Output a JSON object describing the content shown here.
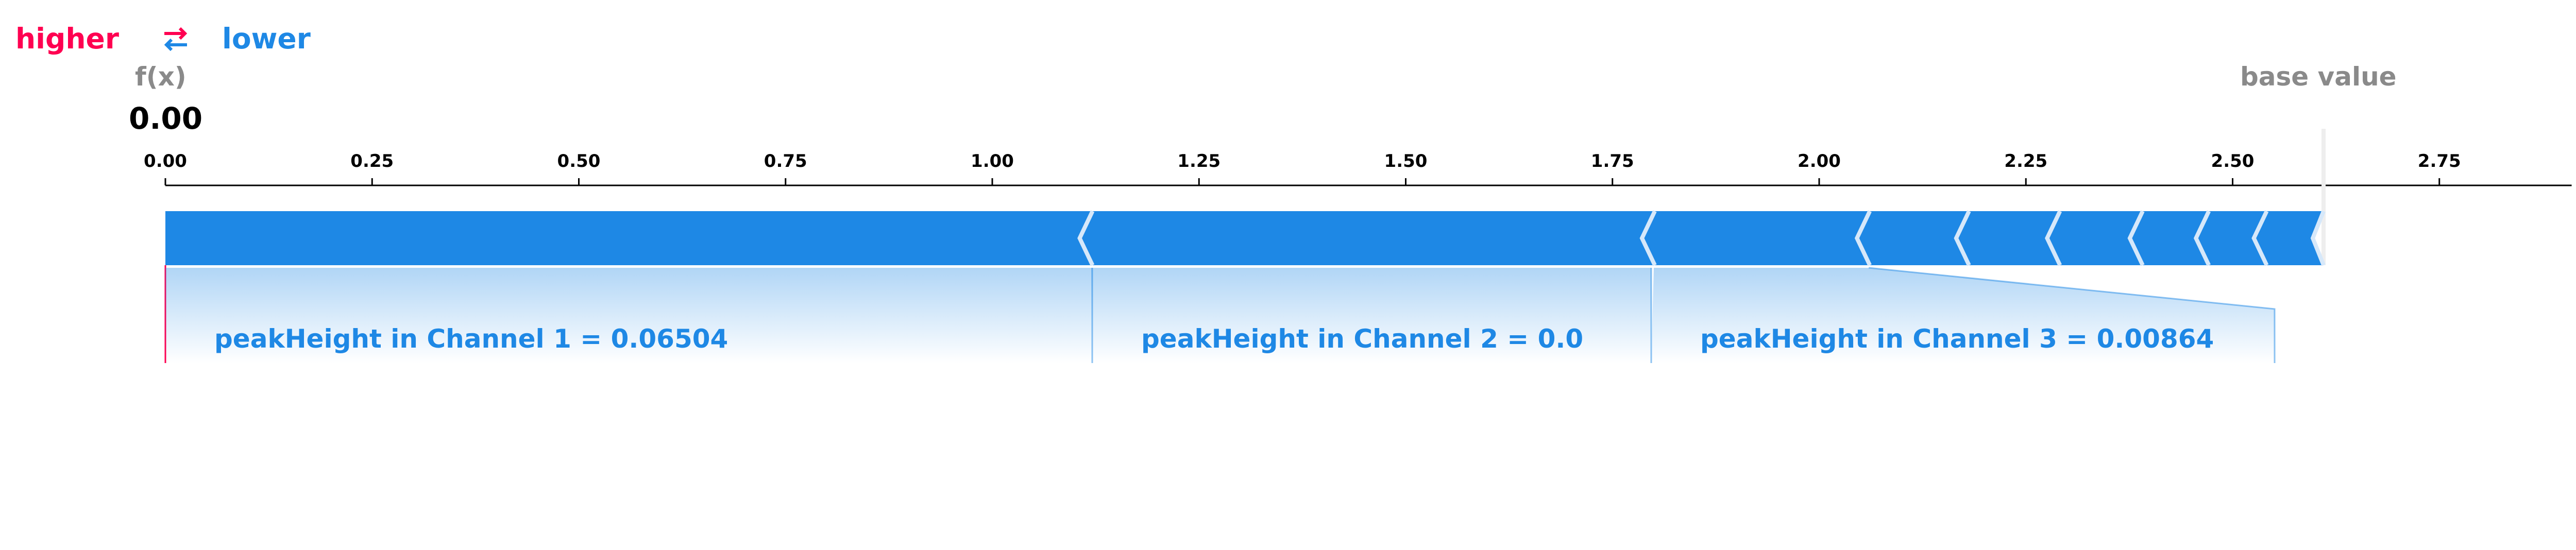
{
  "legend": {
    "higher_label": "higher",
    "lower_label": "lower",
    "higher_color": "#ff0051",
    "lower_color": "#1e88e5",
    "icon": "swap-arrows-icon"
  },
  "fx": {
    "label": "f(x)",
    "value": "0.00"
  },
  "base": {
    "label": "base value"
  },
  "chart_data": {
    "type": "force-plot",
    "output_value": 0.0,
    "base_value": 2.61,
    "xlim": [
      0.0,
      2.91
    ],
    "xticks": [
      0.0,
      0.25,
      0.5,
      0.75,
      1.0,
      1.25,
      1.5,
      1.75,
      2.0,
      2.25,
      2.5,
      2.75
    ],
    "xtick_labels": [
      "0.00",
      "0.25",
      "0.50",
      "0.75",
      "1.00",
      "1.25",
      "1.50",
      "1.75",
      "2.00",
      "2.25",
      "2.50",
      "2.75"
    ],
    "segments": [
      {
        "start": 0.0,
        "end": 1.12,
        "label": "peakHeight in Channel 1 = 0.06504"
      },
      {
        "start": 1.12,
        "end": 1.8,
        "label": "peakHeight in Channel 2 = 0.0"
      },
      {
        "start": 1.8,
        "end": 2.06,
        "label": "peakHeight in Channel 3 = 0.00864"
      },
      {
        "start": 2.06,
        "end": 2.18,
        "label": ""
      },
      {
        "start": 2.18,
        "end": 2.29,
        "label": ""
      },
      {
        "start": 2.29,
        "end": 2.39,
        "label": ""
      },
      {
        "start": 2.39,
        "end": 2.47,
        "label": ""
      },
      {
        "start": 2.47,
        "end": 2.54,
        "label": ""
      },
      {
        "start": 2.54,
        "end": 2.61,
        "label": ""
      }
    ],
    "colors": {
      "lower": "#1e88e5",
      "higher": "#ff0051",
      "label_text": "#1e88e5"
    }
  }
}
